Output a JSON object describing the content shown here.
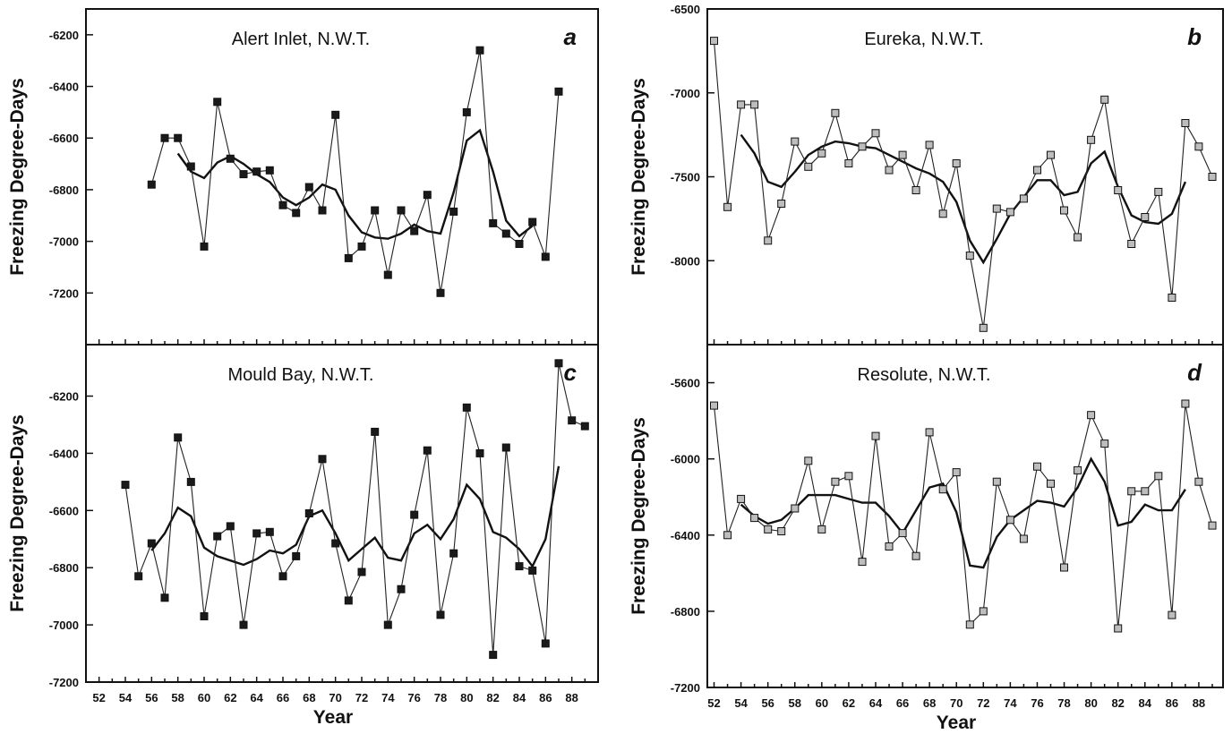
{
  "chart_data": [
    {
      "id": "a",
      "type": "line",
      "title": "Alert Inlet, N.W.T.",
      "letter": "a",
      "ylabel": "Freezing Degree-Days",
      "xlabel": "",
      "xlim": [
        51,
        90
      ],
      "ylim": [
        -7400,
        -6100
      ],
      "yticks": [
        -6200,
        -6400,
        -6600,
        -6800,
        -7000,
        -7200
      ],
      "xticks": [],
      "marker_fill": "#1a1a1a",
      "series": [
        {
          "x": [
            56,
            57,
            58,
            59,
            60,
            61,
            62,
            63,
            64,
            65,
            66,
            67,
            68,
            69,
            70,
            71,
            72,
            73,
            74,
            75,
            76,
            77,
            78,
            79,
            80,
            81,
            82,
            83,
            84,
            85,
            86,
            87
          ],
          "y": [
            -6780,
            -6600,
            -6600,
            -6710,
            -7020,
            -6460,
            -6680,
            -6740,
            -6730,
            -6725,
            -6860,
            -6890,
            -6790,
            -6880,
            -6510,
            -7065,
            -7020,
            -6880,
            -7130,
            -6880,
            -6960,
            -6820,
            -7200,
            -6885,
            -6500,
            -6260,
            -6930,
            -6970,
            -7010,
            -6925,
            -7060,
            -6420
          ]
        },
        {
          "x": [
            58,
            59,
            60,
            61,
            62,
            63,
            64,
            65,
            66,
            67,
            68,
            69,
            70,
            71,
            72,
            73,
            74,
            75,
            76,
            77,
            78,
            79,
            80,
            81,
            82,
            83,
            84,
            85
          ],
          "y": [
            -6660,
            -6730,
            -6755,
            -6695,
            -6670,
            -6700,
            -6740,
            -6770,
            -6830,
            -6860,
            -6830,
            -6780,
            -6800,
            -6900,
            -6965,
            -6985,
            -6990,
            -6970,
            -6935,
            -6960,
            -6970,
            -6810,
            -6610,
            -6570,
            -6730,
            -6920,
            -6980,
            -6940
          ]
        }
      ]
    },
    {
      "id": "b",
      "type": "line",
      "title": "Eureka, N.W.T.",
      "letter": "b",
      "ylabel": "Freezing Degree-Days",
      "xlabel": "",
      "xlim": [
        51.5,
        89.8
      ],
      "ylim": [
        -8500,
        -6500
      ],
      "yticks": [
        -6500,
        -7000,
        -7500,
        -8000
      ],
      "xticks": [],
      "marker_fill": "#bdbdbd",
      "series": [
        {
          "x": [
            52,
            53,
            54,
            55,
            56,
            57,
            58,
            59,
            60,
            61,
            62,
            63,
            64,
            65,
            66,
            67,
            68,
            69,
            70,
            71,
            72,
            73,
            74,
            75,
            76,
            77,
            78,
            79,
            80,
            81,
            82,
            83,
            84,
            85,
            86,
            87,
            88,
            89
          ],
          "y": [
            -6690,
            -7680,
            -7070,
            -7070,
            -7880,
            -7660,
            -7290,
            -7440,
            -7360,
            -7120,
            -7420,
            -7320,
            -7240,
            -7460,
            -7370,
            -7580,
            -7310,
            -7720,
            -7420,
            -7970,
            -8400,
            -7690,
            -7710,
            -7630,
            -7460,
            -7370,
            -7700,
            -7860,
            -7280,
            -7040,
            -7580,
            -7900,
            -7740,
            -7590,
            -8220,
            -7180,
            -7320,
            -7500
          ]
        },
        {
          "x": [
            54,
            55,
            56,
            57,
            58,
            59,
            60,
            61,
            62,
            63,
            64,
            65,
            66,
            67,
            68,
            69,
            70,
            71,
            72,
            73,
            74,
            75,
            76,
            77,
            78,
            79,
            80,
            81,
            82,
            83,
            84,
            85,
            86,
            87
          ],
          "y": [
            -7250,
            -7360,
            -7530,
            -7560,
            -7470,
            -7370,
            -7320,
            -7290,
            -7300,
            -7320,
            -7330,
            -7370,
            -7410,
            -7450,
            -7480,
            -7530,
            -7650,
            -7880,
            -8010,
            -7870,
            -7720,
            -7620,
            -7520,
            -7520,
            -7610,
            -7590,
            -7420,
            -7350,
            -7560,
            -7730,
            -7770,
            -7780,
            -7720,
            -7530
          ]
        }
      ]
    },
    {
      "id": "c",
      "type": "line",
      "title": "Mould Bay, N.W.T.",
      "letter": "c",
      "ylabel": "Freezing Degree-Days",
      "xlabel": "Year",
      "xlim": [
        51,
        90
      ],
      "ylim": [
        -7200,
        -6020
      ],
      "yticks": [
        -6200,
        -6400,
        -6600,
        -6800,
        -7000,
        -7200
      ],
      "xticks": [
        "52",
        "54",
        "56",
        "58",
        "60",
        "62",
        "64",
        "66",
        "68",
        "70",
        "72",
        "74",
        "76",
        "78",
        "80",
        "82",
        "84",
        "86",
        "88"
      ],
      "marker_fill": "#1a1a1a",
      "series": [
        {
          "x": [
            54,
            55,
            56,
            57,
            58,
            59,
            60,
            61,
            62,
            63,
            64,
            65,
            66,
            67,
            68,
            69,
            70,
            71,
            72,
            73,
            74,
            75,
            76,
            77,
            78,
            79,
            80,
            81,
            82,
            83,
            84,
            85,
            86,
            87,
            88,
            89
          ],
          "y": [
            -6510,
            -6830,
            -6715,
            -6905,
            -6345,
            -6500,
            -6970,
            -6690,
            -6655,
            -7000,
            -6680,
            -6675,
            -6830,
            -6760,
            -6610,
            -6420,
            -6715,
            -6915,
            -6815,
            -6325,
            -7000,
            -6875,
            -6615,
            -6390,
            -6965,
            -6750,
            -6240,
            -6400,
            -7105,
            -6380,
            -6795,
            -6810,
            -7065,
            -6085,
            -6285,
            -6305
          ]
        },
        {
          "x": [
            56,
            57,
            58,
            59,
            60,
            61,
            62,
            63,
            64,
            65,
            66,
            67,
            68,
            69,
            70,
            71,
            72,
            73,
            74,
            75,
            76,
            77,
            78,
            79,
            80,
            81,
            82,
            83,
            84,
            85,
            86,
            87
          ],
          "y": [
            -6740,
            -6680,
            -6590,
            -6620,
            -6730,
            -6760,
            -6775,
            -6790,
            -6770,
            -6740,
            -6750,
            -6720,
            -6620,
            -6600,
            -6680,
            -6775,
            -6735,
            -6695,
            -6765,
            -6775,
            -6680,
            -6650,
            -6700,
            -6630,
            -6510,
            -6560,
            -6675,
            -6695,
            -6735,
            -6795,
            -6700,
            -6445
          ]
        }
      ]
    },
    {
      "id": "d",
      "type": "line",
      "title": "Resolute, N.W.T.",
      "letter": "d",
      "ylabel": "Freezing Degree-Days",
      "xlabel": "Year",
      "xlim": [
        51.5,
        89.8
      ],
      "ylim": [
        -7200,
        -5400
      ],
      "yticks": [
        -5600,
        -6000,
        -6400,
        -6800,
        -7200
      ],
      "xticks": [
        "52",
        "54",
        "56",
        "58",
        "60",
        "62",
        "64",
        "66",
        "68",
        "70",
        "72",
        "74",
        "76",
        "78",
        "80",
        "82",
        "84",
        "86",
        "88"
      ],
      "marker_fill": "#bdbdbd",
      "series": [
        {
          "x": [
            52,
            53,
            54,
            55,
            56,
            57,
            58,
            59,
            60,
            61,
            62,
            63,
            64,
            65,
            66,
            67,
            68,
            69,
            70,
            71,
            72,
            73,
            74,
            75,
            76,
            77,
            78,
            79,
            80,
            81,
            82,
            83,
            84,
            85,
            86,
            87,
            88,
            89
          ],
          "y": [
            -5720,
            -6400,
            -6210,
            -6310,
            -6370,
            -6380,
            -6260,
            -6010,
            -6370,
            -6120,
            -6090,
            -6540,
            -5880,
            -6460,
            -6390,
            -6510,
            -5860,
            -6160,
            -6070,
            -6870,
            -6800,
            -6120,
            -6320,
            -6420,
            -6040,
            -6130,
            -6570,
            -6060,
            -5770,
            -5920,
            -6890,
            -6170,
            -6170,
            -6090,
            -6820,
            -5710,
            -6120,
            -6350
          ]
        },
        {
          "x": [
            54,
            55,
            56,
            57,
            58,
            59,
            60,
            61,
            62,
            63,
            64,
            65,
            66,
            67,
            68,
            69,
            70,
            71,
            72,
            73,
            74,
            75,
            76,
            77,
            78,
            79,
            80,
            81,
            82,
            83,
            84,
            85,
            86,
            87
          ],
          "y": [
            -6240,
            -6300,
            -6340,
            -6320,
            -6260,
            -6190,
            -6190,
            -6190,
            -6210,
            -6230,
            -6230,
            -6300,
            -6390,
            -6270,
            -6150,
            -6130,
            -6280,
            -6560,
            -6570,
            -6410,
            -6320,
            -6270,
            -6220,
            -6230,
            -6250,
            -6150,
            -6000,
            -6120,
            -6350,
            -6330,
            -6240,
            -6270,
            -6270,
            -6160
          ]
        }
      ]
    }
  ]
}
